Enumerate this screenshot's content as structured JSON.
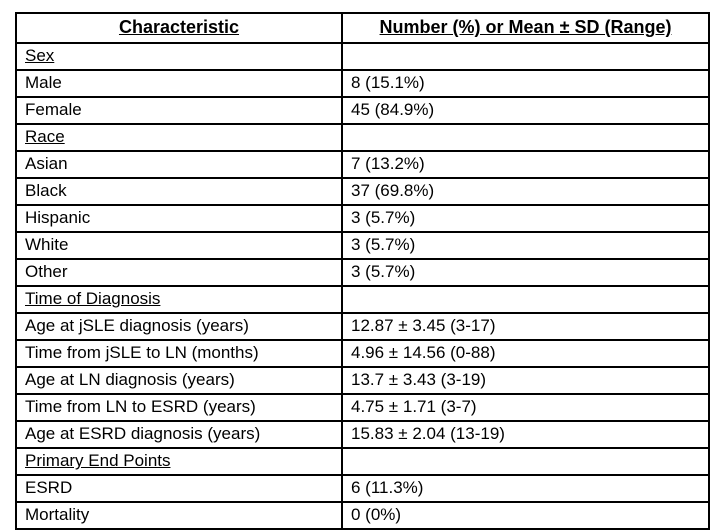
{
  "table": {
    "columns": [
      {
        "label": "Characteristic"
      },
      {
        "label": "Number (%) or Mean ± SD (Range)"
      }
    ],
    "rows": [
      {
        "type": "section",
        "label": "Sex",
        "value": ""
      },
      {
        "type": "data",
        "label": "Male",
        "value": "8 (15.1%)"
      },
      {
        "type": "data",
        "label": "Female",
        "value": "45 (84.9%)"
      },
      {
        "type": "section",
        "label": "Race",
        "value": ""
      },
      {
        "type": "data",
        "label": "Asian",
        "value": "7 (13.2%)"
      },
      {
        "type": "data",
        "label": "Black",
        "value": "37 (69.8%)"
      },
      {
        "type": "data",
        "label": "Hispanic",
        "value": "3 (5.7%)"
      },
      {
        "type": "data",
        "label": "White",
        "value": "3 (5.7%)"
      },
      {
        "type": "data",
        "label": "Other",
        "value": "3 (5.7%)"
      },
      {
        "type": "section",
        "label": "Time of Diagnosis",
        "value": ""
      },
      {
        "type": "data",
        "label": "Age at jSLE diagnosis (years)",
        "value": "12.87 ± 3.45 (3-17)"
      },
      {
        "type": "data",
        "label": "Time from jSLE to LN (months)",
        "value": "4.96 ± 14.56 (0-88)"
      },
      {
        "type": "data",
        "label": "Age at LN diagnosis (years)",
        "value": "13.7 ± 3.43 (3-19)"
      },
      {
        "type": "data",
        "label": "Time from LN to ESRD (years)",
        "value": "4.75 ± 1.71 (3-7)"
      },
      {
        "type": "data",
        "label": "Age at ESRD diagnosis (years)",
        "value": "15.83 ± 2.04 (13-19)"
      },
      {
        "type": "section",
        "label": "Primary End Points",
        "value": ""
      },
      {
        "type": "data",
        "label": "ESRD",
        "value": "6 (11.3%)"
      },
      {
        "type": "data",
        "label": "Mortality",
        "value": "0 (0%)"
      }
    ],
    "colors": {
      "border": "#000000",
      "text": "#000000",
      "background": "#ffffff"
    }
  }
}
